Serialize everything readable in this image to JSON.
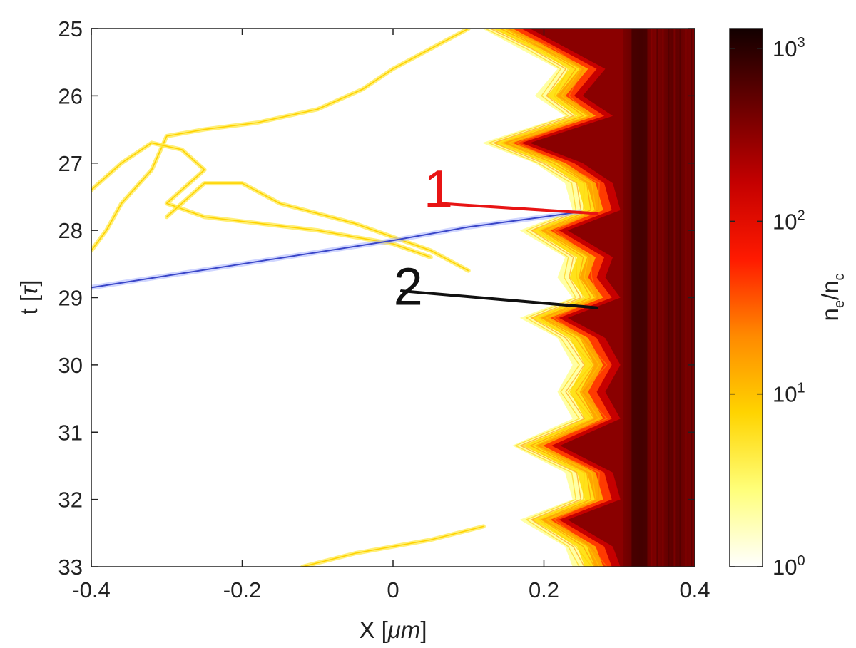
{
  "chart_data": {
    "type": "heatmap",
    "xlabel": {
      "main": "X [",
      "unit": "μm",
      "close": "]"
    },
    "ylabel": {
      "main": "t [",
      "unit": "τ",
      "close": "]"
    },
    "xlim": [
      -0.4,
      0.4
    ],
    "ylim": [
      25,
      33
    ],
    "x_ticks": [
      -0.4,
      -0.2,
      0,
      0.2,
      0.4
    ],
    "x_tick_labels": [
      "-0.4",
      "-0.2",
      "0",
      "0.2",
      "0.4"
    ],
    "y_ticks": [
      25,
      26,
      27,
      28,
      29,
      30,
      31,
      32,
      33
    ],
    "y_tick_labels": [
      "25",
      "26",
      "27",
      "28",
      "29",
      "30",
      "31",
      "32",
      "33"
    ],
    "colorbar": {
      "label_base": "n",
      "label_sub1": "e",
      "label_sep": "/n",
      "label_sub2": "c",
      "scale": "log",
      "range": [
        1,
        1000
      ],
      "ticks": [
        {
          "value": 1,
          "base": "10",
          "exp": "0"
        },
        {
          "value": 10,
          "base": "10",
          "exp": "1"
        },
        {
          "value": 100,
          "base": "10",
          "exp": "2"
        },
        {
          "value": 1000,
          "base": "10",
          "exp": "3"
        }
      ],
      "colors": [
        "#ffffff",
        "#ffff7a",
        "#ffd400",
        "#ff8a00",
        "#ff1a00",
        "#c40000",
        "#6a0000",
        "#120000"
      ]
    },
    "surface": {
      "description_points_x_vs_t": [
        [
          0.17,
          25.0
        ],
        [
          0.22,
          25.3
        ],
        [
          0.27,
          25.6
        ],
        [
          0.24,
          26.0
        ],
        [
          0.28,
          26.3
        ],
        [
          0.17,
          26.7
        ],
        [
          0.24,
          27.0
        ],
        [
          0.28,
          27.3
        ],
        [
          0.29,
          27.7
        ],
        [
          0.22,
          28.0
        ],
        [
          0.28,
          28.4
        ],
        [
          0.27,
          28.7
        ],
        [
          0.29,
          29.0
        ],
        [
          0.22,
          29.3
        ],
        [
          0.27,
          29.6
        ],
        [
          0.29,
          30.0
        ],
        [
          0.27,
          30.4
        ],
        [
          0.29,
          30.8
        ],
        [
          0.21,
          31.2
        ],
        [
          0.28,
          31.6
        ],
        [
          0.29,
          32.0
        ],
        [
          0.22,
          32.3
        ],
        [
          0.28,
          32.7
        ],
        [
          0.29,
          33.0
        ]
      ],
      "dense_edge_x": 0.32
    },
    "yellow_traces": [
      [
        [
          -0.4,
          28.3
        ],
        [
          -0.38,
          28.0
        ],
        [
          -0.36,
          27.6
        ],
        [
          -0.32,
          27.1
        ],
        [
          -0.3,
          26.6
        ],
        [
          -0.25,
          26.5
        ],
        [
          -0.18,
          26.4
        ],
        [
          -0.1,
          26.2
        ],
        [
          -0.04,
          25.9
        ],
        [
          0.0,
          25.6
        ],
        [
          0.05,
          25.3
        ],
        [
          0.1,
          25.0
        ]
      ],
      [
        [
          -0.4,
          27.4
        ],
        [
          -0.36,
          27.0
        ],
        [
          -0.32,
          26.7
        ],
        [
          -0.28,
          26.8
        ],
        [
          -0.25,
          27.1
        ],
        [
          -0.28,
          27.4
        ],
        [
          -0.3,
          27.6
        ],
        [
          -0.25,
          27.8
        ],
        [
          -0.1,
          28.0
        ],
        [
          0.0,
          28.2
        ],
        [
          0.05,
          28.4
        ]
      ],
      [
        [
          -0.3,
          27.8
        ],
        [
          -0.25,
          27.3
        ],
        [
          -0.2,
          27.3
        ],
        [
          -0.15,
          27.6
        ],
        [
          -0.05,
          27.9
        ],
        [
          0.05,
          28.3
        ],
        [
          0.1,
          28.6
        ]
      ],
      [
        [
          -0.12,
          33.0
        ],
        [
          -0.05,
          32.8
        ],
        [
          0.05,
          32.6
        ],
        [
          0.12,
          32.4
        ]
      ]
    ],
    "blue_trace": [
      [
        -0.4,
        28.85
      ],
      [
        -0.2,
        28.5
      ],
      [
        0.0,
        28.15
      ],
      [
        0.1,
        27.95
      ],
      [
        0.2,
        27.8
      ],
      [
        0.25,
        27.72
      ]
    ],
    "annotations": [
      {
        "label": "1",
        "color": "#e81414",
        "label_at": [
          0.06,
          27.4
        ],
        "line_from": [
          0.05,
          27.6
        ],
        "line_to": [
          0.27,
          27.75
        ]
      },
      {
        "label": "2",
        "color": "#111111",
        "label_at": [
          0.02,
          28.85
        ],
        "line_from": [
          0.0,
          28.9
        ],
        "line_to": [
          0.27,
          29.15
        ]
      }
    ]
  }
}
